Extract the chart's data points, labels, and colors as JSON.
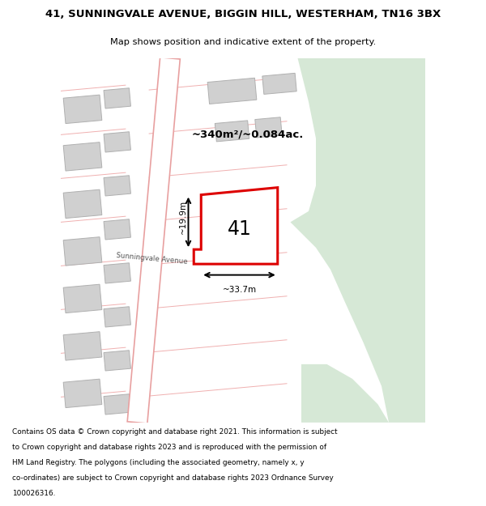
{
  "title_line1": "41, SUNNINGVALE AVENUE, BIGGIN HILL, WESTERHAM, TN16 3BX",
  "title_line2": "Map shows position and indicative extent of the property.",
  "footer_lines": [
    "Contains OS data © Crown copyright and database right 2021. This information is subject",
    "to Crown copyright and database rights 2023 and is reproduced with the permission of",
    "HM Land Registry. The polygons (including the associated geometry, namely x, y",
    "co-ordinates) are subject to Crown copyright and database rights 2023 Ordnance Survey",
    "100026316."
  ],
  "area_label": "~340m²/~0.084ac.",
  "property_number": "41",
  "width_label": "~33.7m",
  "height_label": "~19.9m",
  "map_bg": "#f0eeeb",
  "road_color": "#ffffff",
  "road_border_color": "#e8a0a0",
  "building_color": "#d0d0d0",
  "building_border_color": "#b0b0b0",
  "green_area_color": "#d6e8d6",
  "property_fill": "#ffffff",
  "property_border": "#dd0000",
  "street_label": "Sunningvale Avenue",
  "road_line_color": "#f0b0b0"
}
